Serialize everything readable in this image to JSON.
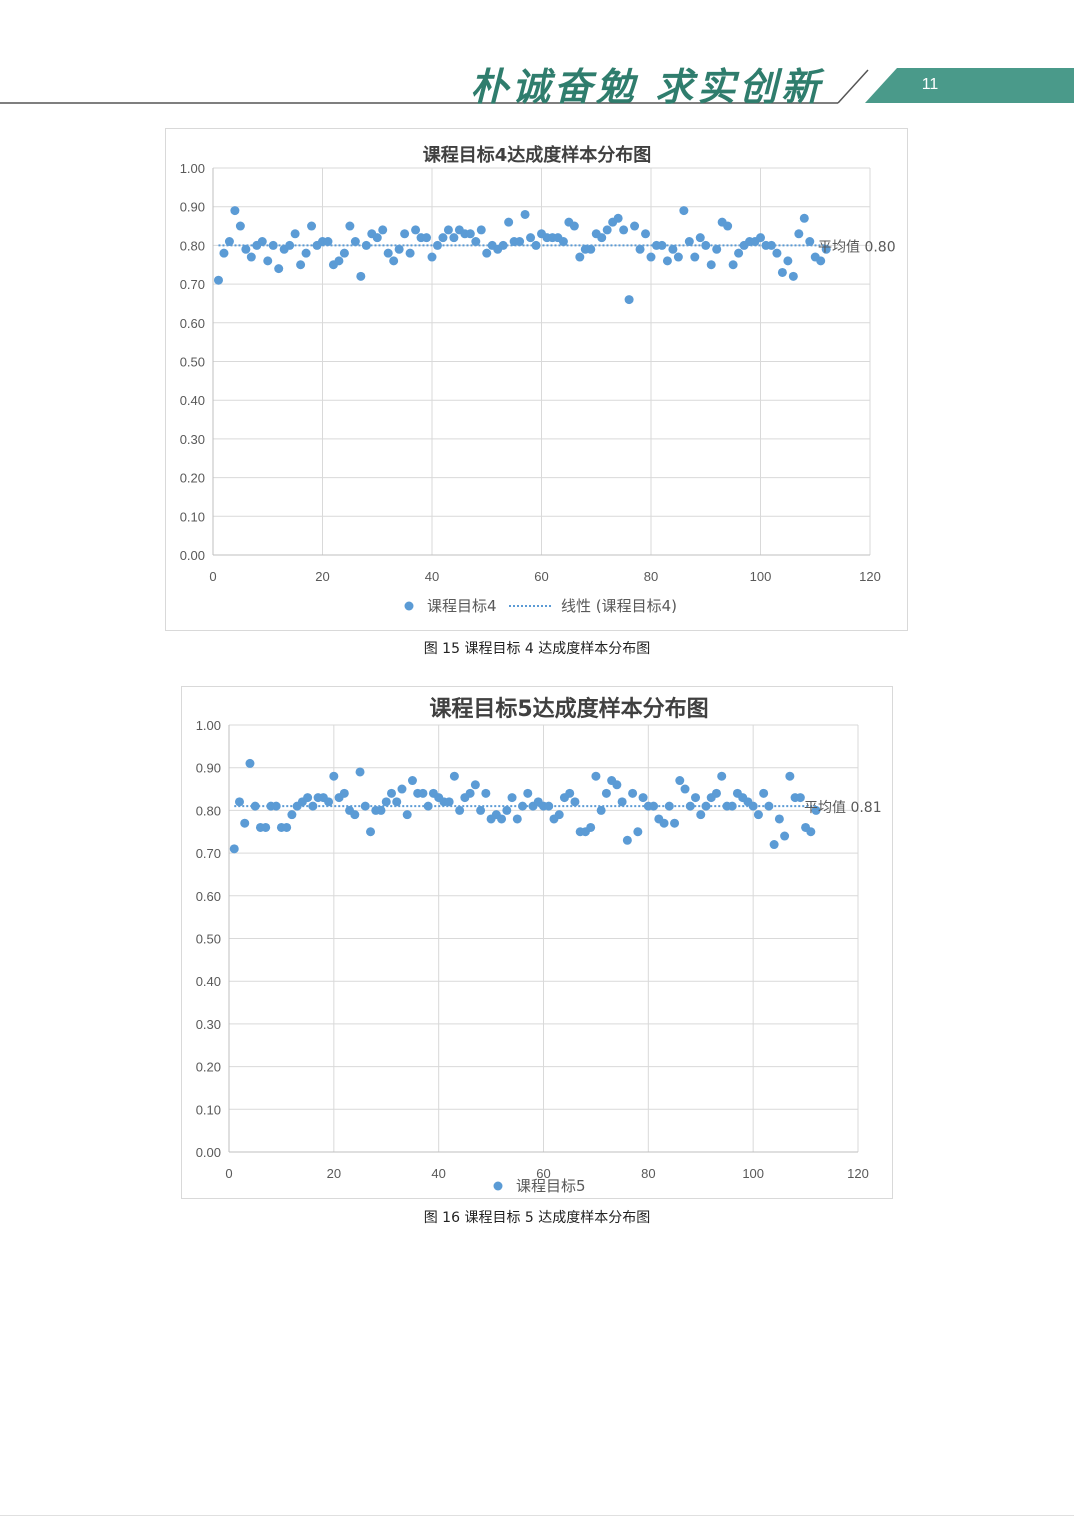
{
  "header": {
    "motto": "朴诚奋勉  求实创新",
    "page_number": "11",
    "accent_color": "#4a9a8a"
  },
  "captions": {
    "fig15": "图 15    课程目标 4 达成度样本分布图",
    "fig16": "图 16    课程目标 5 达成度样本分布图"
  },
  "chart_data": [
    {
      "type": "scatter",
      "title": "课程目标4达成度样本分布图",
      "xlabel": "",
      "ylabel": "",
      "xlim": [
        0,
        120
      ],
      "ylim": [
        0,
        1
      ],
      "x_ticks": [
        "0",
        "20",
        "40",
        "60",
        "80",
        "100",
        "120"
      ],
      "y_ticks": [
        "0.00",
        "0.10",
        "0.20",
        "0.30",
        "0.40",
        "0.50",
        "0.60",
        "0.70",
        "0.80",
        "0.90",
        "1.00"
      ],
      "grid": true,
      "legend_position": "bottom",
      "point_color": "#5b9bd5",
      "series": [
        {
          "name": "课程目标4",
          "x": [
            1,
            2,
            3,
            4,
            5,
            6,
            7,
            8,
            9,
            10,
            11,
            12,
            13,
            14,
            15,
            16,
            17,
            18,
            19,
            20,
            21,
            22,
            23,
            24,
            25,
            26,
            27,
            28,
            29,
            30,
            31,
            32,
            33,
            34,
            35,
            36,
            37,
            38,
            39,
            40,
            41,
            42,
            43,
            44,
            45,
            46,
            47,
            48,
            49,
            50,
            51,
            52,
            53,
            54,
            55,
            56,
            57,
            58,
            59,
            60,
            61,
            62,
            63,
            64,
            65,
            66,
            67,
            68,
            69,
            70,
            71,
            72,
            73,
            74,
            75,
            76,
            77,
            78,
            79,
            80,
            81,
            82,
            83,
            84,
            85,
            86,
            87,
            88,
            89,
            90,
            91,
            92,
            93,
            94,
            95,
            96,
            97,
            98,
            99,
            100,
            101,
            102,
            103,
            104,
            105,
            106,
            107,
            108,
            109,
            110,
            111,
            112
          ],
          "y": [
            0.71,
            0.78,
            0.81,
            0.89,
            0.85,
            0.79,
            0.77,
            0.8,
            0.81,
            0.76,
            0.8,
            0.74,
            0.79,
            0.8,
            0.83,
            0.75,
            0.78,
            0.85,
            0.8,
            0.81,
            0.81,
            0.75,
            0.76,
            0.78,
            0.85,
            0.81,
            0.72,
            0.8,
            0.83,
            0.82,
            0.84,
            0.78,
            0.76,
            0.79,
            0.83,
            0.78,
            0.84,
            0.82,
            0.82,
            0.77,
            0.8,
            0.82,
            0.84,
            0.82,
            0.84,
            0.83,
            0.83,
            0.81,
            0.84,
            0.78,
            0.8,
            0.79,
            0.8,
            0.86,
            0.81,
            0.81,
            0.88,
            0.82,
            0.8,
            0.83,
            0.82,
            0.82,
            0.82,
            0.81,
            0.86,
            0.85,
            0.77,
            0.79,
            0.79,
            0.83,
            0.82,
            0.84,
            0.86,
            0.87,
            0.84,
            0.66,
            0.85,
            0.79,
            0.83,
            0.77,
            0.8,
            0.8,
            0.76,
            0.79,
            0.77,
            0.89,
            0.81,
            0.77,
            0.82,
            0.8,
            0.75,
            0.79,
            0.86,
            0.85,
            0.75,
            0.78,
            0.8,
            0.81,
            0.81,
            0.82,
            0.8,
            0.8,
            0.78,
            0.73,
            0.76,
            0.72,
            0.83,
            0.87,
            0.81,
            0.77,
            0.76,
            0.79
          ]
        },
        {
          "name": "线性 (课程目标4)",
          "kind": "trendline",
          "x": [
            1,
            112
          ],
          "y": [
            0.8,
            0.8
          ]
        }
      ],
      "annotations": [
        "平均值 0.80"
      ]
    },
    {
      "type": "scatter",
      "title": "课程目标5达成度样本分布图",
      "xlabel": "",
      "ylabel": "",
      "xlim": [
        0,
        120
      ],
      "ylim": [
        0,
        1
      ],
      "x_ticks": [
        "0",
        "20",
        "40",
        "60",
        "80",
        "100",
        "120"
      ],
      "y_ticks": [
        "0.00",
        "0.10",
        "0.20",
        "0.30",
        "0.40",
        "0.50",
        "0.60",
        "0.70",
        "0.80",
        "0.90",
        "1.00"
      ],
      "grid": true,
      "legend_position": "bottom",
      "point_color": "#5b9bd5",
      "series": [
        {
          "name": "课程目标5",
          "x": [
            1,
            2,
            3,
            4,
            5,
            6,
            7,
            8,
            9,
            10,
            11,
            12,
            13,
            14,
            15,
            16,
            17,
            18,
            19,
            20,
            21,
            22,
            23,
            24,
            25,
            26,
            27,
            28,
            29,
            30,
            31,
            32,
            33,
            34,
            35,
            36,
            37,
            38,
            39,
            40,
            41,
            42,
            43,
            44,
            45,
            46,
            47,
            48,
            49,
            50,
            51,
            52,
            53,
            54,
            55,
            56,
            57,
            58,
            59,
            60,
            61,
            62,
            63,
            64,
            65,
            66,
            67,
            68,
            69,
            70,
            71,
            72,
            73,
            74,
            75,
            76,
            77,
            78,
            79,
            80,
            81,
            82,
            83,
            84,
            85,
            86,
            87,
            88,
            89,
            90,
            91,
            92,
            93,
            94,
            95,
            96,
            97,
            98,
            99,
            100,
            101,
            102,
            103,
            104,
            105,
            106,
            107,
            108,
            109,
            110,
            111,
            112
          ],
          "y": [
            0.71,
            0.82,
            0.77,
            0.91,
            0.81,
            0.76,
            0.76,
            0.81,
            0.81,
            0.76,
            0.76,
            0.79,
            0.81,
            0.82,
            0.83,
            0.81,
            0.83,
            0.83,
            0.82,
            0.88,
            0.83,
            0.84,
            0.8,
            0.79,
            0.89,
            0.81,
            0.75,
            0.8,
            0.8,
            0.82,
            0.84,
            0.82,
            0.85,
            0.79,
            0.87,
            0.84,
            0.84,
            0.81,
            0.84,
            0.83,
            0.82,
            0.82,
            0.88,
            0.8,
            0.83,
            0.84,
            0.86,
            0.8,
            0.84,
            0.78,
            0.79,
            0.78,
            0.8,
            0.83,
            0.78,
            0.81,
            0.84,
            0.81,
            0.82,
            0.81,
            0.81,
            0.78,
            0.79,
            0.83,
            0.84,
            0.82,
            0.75,
            0.75,
            0.76,
            0.88,
            0.8,
            0.84,
            0.87,
            0.86,
            0.82,
            0.73,
            0.84,
            0.75,
            0.83,
            0.81,
            0.81,
            0.78,
            0.77,
            0.81,
            0.77,
            0.87,
            0.85,
            0.81,
            0.83,
            0.79,
            0.81,
            0.83,
            0.84,
            0.88,
            0.81,
            0.81,
            0.84,
            0.83,
            0.82,
            0.81,
            0.79,
            0.84,
            0.81,
            0.72,
            0.78,
            0.74,
            0.88,
            0.83,
            0.83,
            0.76,
            0.75,
            0.8
          ]
        },
        {
          "name": "",
          "kind": "trendline",
          "x": [
            1,
            112
          ],
          "y": [
            0.81,
            0.81
          ]
        }
      ],
      "annotations": [
        "平均值 0.81"
      ]
    }
  ]
}
